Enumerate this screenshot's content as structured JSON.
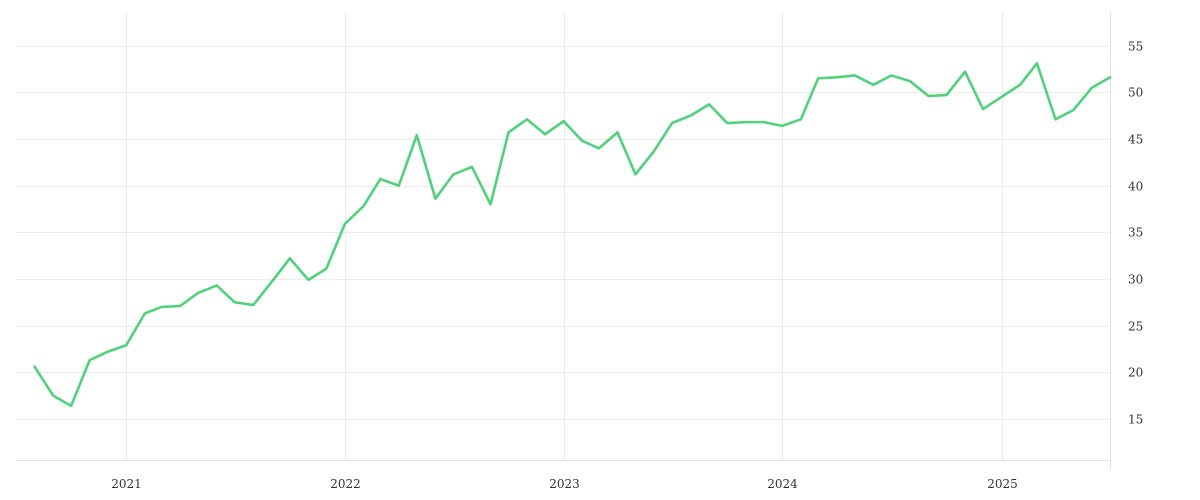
{
  "chart_data": {
    "type": "line",
    "title": "",
    "xlabel": "",
    "ylabel": "",
    "grid": true,
    "yaxis_side": "right",
    "xlim": [
      "2020-07-01",
      "2025-07-01"
    ],
    "ylim": [
      10.6,
      58.6
    ],
    "x_ticks": [
      {
        "date": "2021-01-01",
        "label": "2021"
      },
      {
        "date": "2022-01-01",
        "label": "2022"
      },
      {
        "date": "2023-01-01",
        "label": "2023"
      },
      {
        "date": "2024-01-01",
        "label": "2024"
      },
      {
        "date": "2025-01-01",
        "label": "2025"
      }
    ],
    "y_ticks": [
      15,
      20,
      25,
      30,
      35,
      40,
      45,
      50,
      55
    ],
    "colors": {
      "series": "#4fd27a",
      "grid": "#ececec",
      "text": "#333333"
    },
    "series": [
      {
        "x": [
          "2020-08-01",
          "2020-09-01",
          "2020-10-01",
          "2020-11-01",
          "2020-12-01",
          "2021-01-01",
          "2021-02-01",
          "2021-03-01",
          "2021-04-01",
          "2021-05-01",
          "2021-06-01",
          "2021-07-01",
          "2021-08-01",
          "2021-09-01",
          "2021-10-01",
          "2021-11-01",
          "2021-12-01",
          "2022-01-01",
          "2022-02-01",
          "2022-03-01",
          "2022-04-01",
          "2022-05-01",
          "2022-06-01",
          "2022-07-01",
          "2022-08-01",
          "2022-09-01",
          "2022-10-01",
          "2022-11-01",
          "2022-12-01",
          "2023-01-01",
          "2023-02-01",
          "2023-03-01",
          "2023-04-01",
          "2023-05-01",
          "2023-06-01",
          "2023-07-01",
          "2023-08-01",
          "2023-09-01",
          "2023-10-01",
          "2023-11-01",
          "2023-12-01",
          "2024-01-01",
          "2024-02-01",
          "2024-03-01",
          "2024-04-01",
          "2024-05-01",
          "2024-06-01",
          "2024-07-01",
          "2024-08-01",
          "2024-09-01",
          "2024-10-01",
          "2024-11-01",
          "2024-12-01",
          "2025-01-01",
          "2025-02-01",
          "2025-03-01",
          "2025-04-01",
          "2025-05-01",
          "2025-06-01",
          "2025-07-01"
        ],
        "values": [
          20.6,
          17.5,
          16.4,
          21.3,
          22.2,
          22.9,
          26.3,
          27.0,
          27.1,
          28.5,
          29.3,
          27.5,
          27.2,
          29.7,
          32.2,
          29.9,
          31.1,
          35.9,
          37.8,
          40.7,
          40.0,
          45.4,
          38.6,
          41.2,
          42.0,
          38.0,
          45.7,
          47.1,
          45.5,
          46.9,
          44.8,
          44.0,
          45.7,
          41.2,
          43.7,
          46.7,
          47.5,
          48.7,
          46.7,
          46.8,
          46.8,
          46.4,
          47.1,
          51.5,
          51.6,
          51.8,
          50.8,
          51.8,
          51.2,
          49.6,
          49.7,
          52.2,
          48.2,
          49.5,
          50.8,
          53.1,
          47.1,
          48.1,
          50.5,
          51.6
        ]
      }
    ]
  }
}
